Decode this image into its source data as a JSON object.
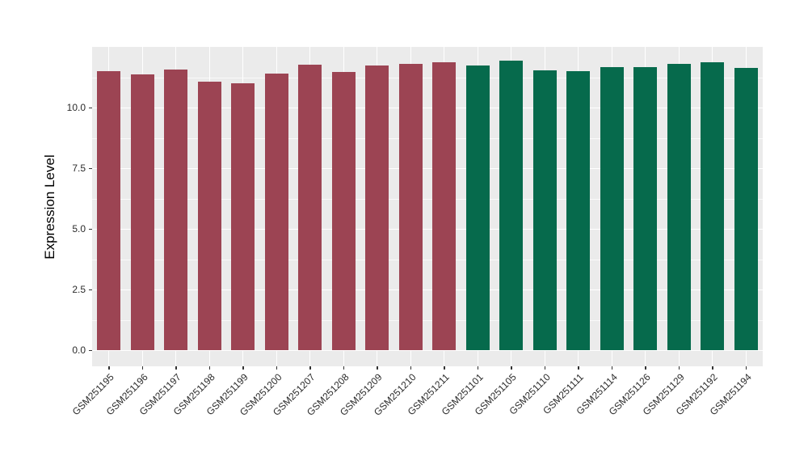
{
  "figure": {
    "background": "#FFFFFF",
    "panel_bg": "#EBEBEB",
    "grid_major_color": "#FFFFFF",
    "grid_minor_color": "rgba(255,255,255,0.7)",
    "tick_mark_color": "#333333",
    "axis_text_color": "#2B2B2B",
    "axis_title_color": "#000000"
  },
  "chart_data": {
    "type": "bar",
    "title": "",
    "xlabel": "",
    "ylabel": "Expression Level",
    "grid": true,
    "legend": false,
    "ylim": [
      0,
      12.5
    ],
    "yticks": [
      0,
      2.5,
      5,
      7.5,
      10
    ],
    "ytick_labels": [
      "0.0",
      "2.5",
      "5.0",
      "7.5",
      "10.0"
    ],
    "categories": [
      "GSM251195",
      "GSM251196",
      "GSM251197",
      "GSM251198",
      "GSM251199",
      "GSM251200",
      "GSM251207",
      "GSM251208",
      "GSM251209",
      "GSM251210",
      "GSM251211",
      "GSM251101",
      "GSM251105",
      "GSM251110",
      "GSM251111",
      "GSM251114",
      "GSM251126",
      "GSM251129",
      "GSM251192",
      "GSM251194"
    ],
    "values": [
      11.5,
      11.38,
      11.57,
      11.08,
      11.01,
      11.39,
      11.77,
      11.47,
      11.74,
      11.81,
      11.86,
      11.72,
      11.94,
      11.54,
      11.5,
      11.66,
      11.66,
      11.8,
      11.86,
      11.64
    ],
    "bar_colors": [
      "#9C4453",
      "#9C4453",
      "#9C4453",
      "#9C4453",
      "#9C4453",
      "#9C4453",
      "#9C4453",
      "#9C4453",
      "#9C4453",
      "#9C4453",
      "#9C4453",
      "#066A4C",
      "#066A4C",
      "#066A4C",
      "#066A4C",
      "#066A4C",
      "#066A4C",
      "#066A4C",
      "#066A4C",
      "#066A4C"
    ],
    "groups": [
      {
        "name": "group-1-maroon",
        "color": "#9C4453",
        "count": 11
      },
      {
        "name": "group-2-green",
        "color": "#066A4C",
        "count": 9
      }
    ]
  }
}
